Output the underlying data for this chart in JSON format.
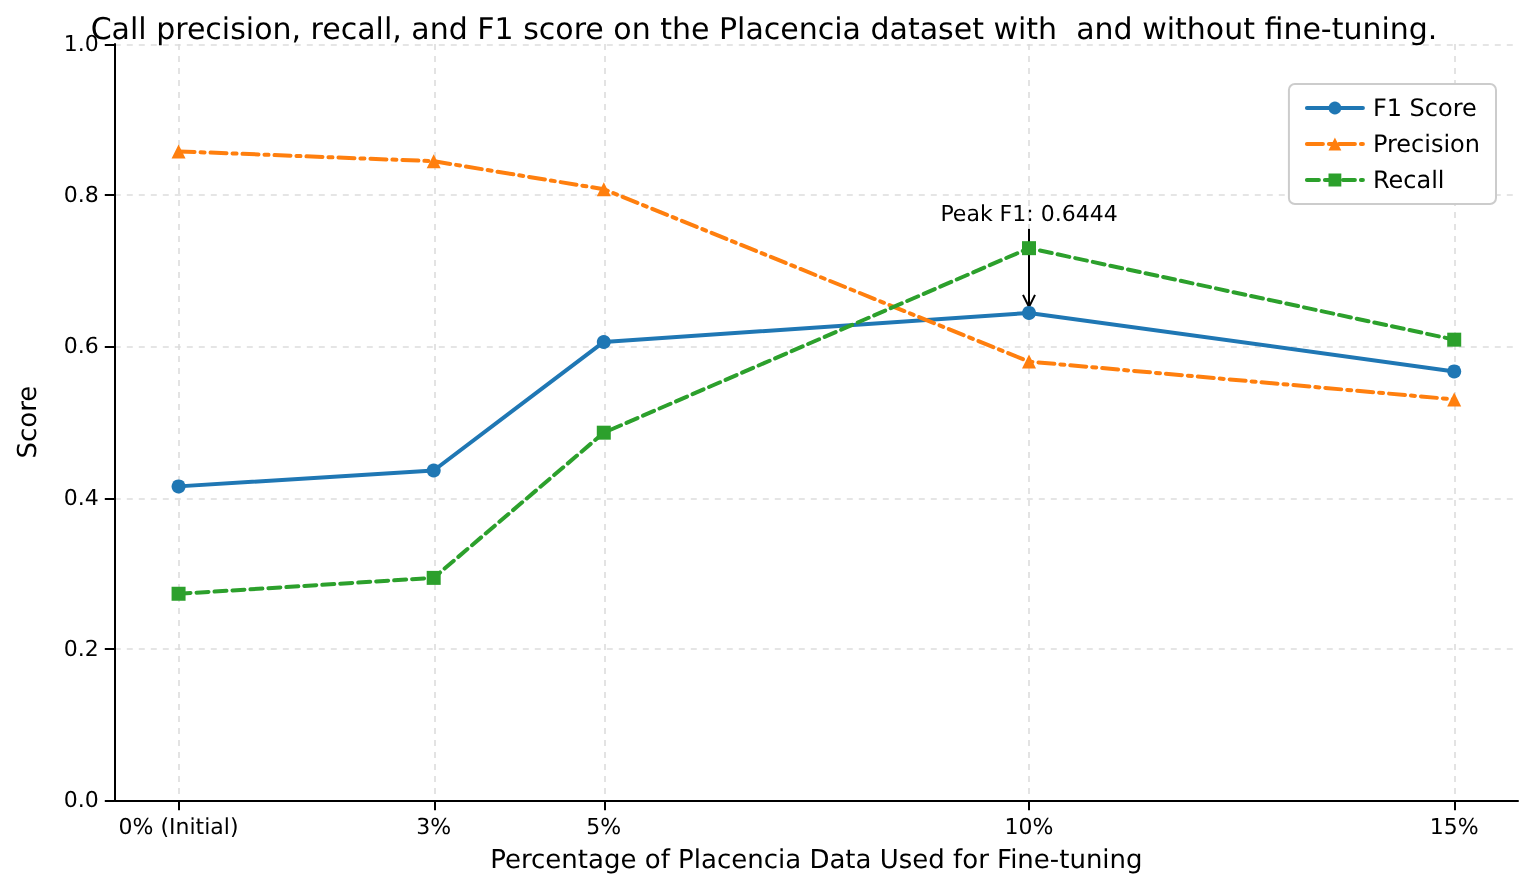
{
  "chart_data": {
    "type": "line",
    "title": "Call precision, recall, and F1 score on the Placencia dataset with  and without fine-tuning.",
    "xlabel": "Percentage of Placencia Data Used for Fine-tuning",
    "ylabel": "Score",
    "x": [
      0,
      3,
      5,
      10,
      15
    ],
    "series": [
      {
        "name": "F1 Score",
        "color": "#1f77b4",
        "marker": "circle",
        "line_style": "solid",
        "values": [
          0.415,
          0.436,
          0.606,
          0.6444,
          0.567
        ]
      },
      {
        "name": "Precision",
        "color": "#ff7f0e",
        "marker": "triangle",
        "line_style": "dashdot",
        "values": [
          0.858,
          0.845,
          0.808,
          0.58,
          0.53
        ]
      },
      {
        "name": "Recall",
        "color": "#2ca02c",
        "marker": "square",
        "line_style": "dashed",
        "values": [
          0.273,
          0.294,
          0.486,
          0.73,
          0.609
        ]
      }
    ],
    "xlim": [
      -0.75,
      15.75
    ],
    "xticks": [
      {
        "value": 0,
        "label": "0% (Initial)"
      },
      {
        "value": 3,
        "label": "3%"
      },
      {
        "value": 5,
        "label": "5%"
      },
      {
        "value": 10,
        "label": "10%"
      },
      {
        "value": 15,
        "label": "15%"
      }
    ],
    "ylim": [
      0,
      1
    ],
    "yticks": [
      {
        "value": 0,
        "label": "0.0"
      },
      {
        "value": 0.2,
        "label": "0.2"
      },
      {
        "value": 0.4,
        "label": "0.4"
      },
      {
        "value": 0.6,
        "label": "0.6"
      },
      {
        "value": 0.8,
        "label": "0.8"
      },
      {
        "value": 1,
        "label": "1.0"
      }
    ],
    "annotations": [
      {
        "text": "Peak F1: 0.6444",
        "x": 10,
        "y": 0.6444
      }
    ],
    "grid": true,
    "legend": "top right"
  }
}
